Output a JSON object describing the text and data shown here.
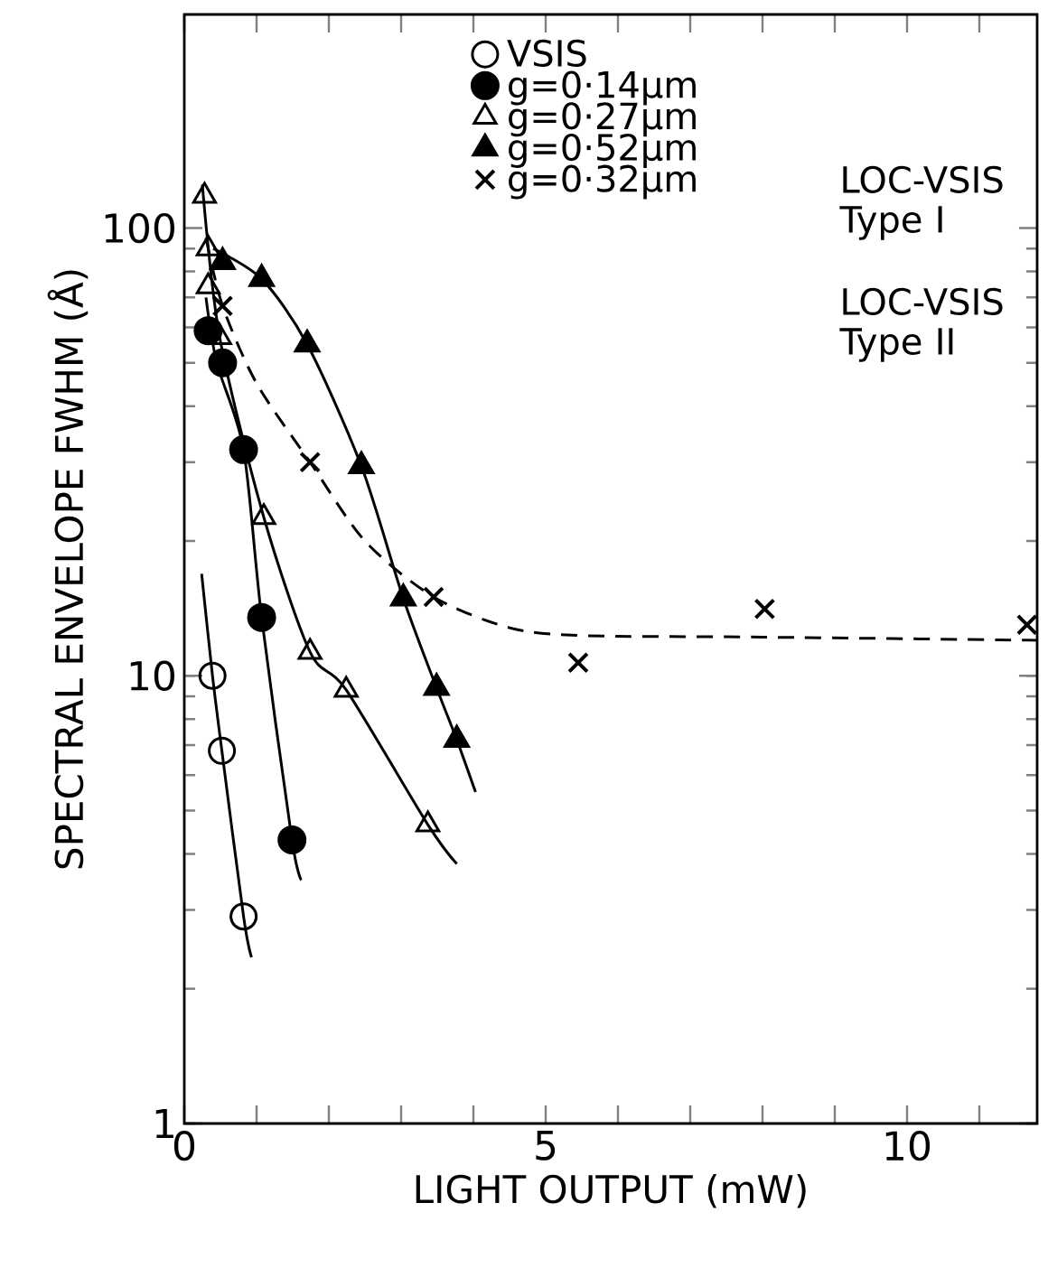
{
  "chart_data": {
    "type": "scatter",
    "xlabel": "LIGHT OUTPUT (mW)",
    "ylabel": "SPECTRAL ENVELOPE FWHM (Å)",
    "log": "y",
    "xlim": [
      0,
      11.8
    ],
    "ylim": [
      1,
      300
    ],
    "xticks": [
      0,
      {
        "value": 1,
        "label": null
      },
      {
        "value": 2,
        "label": null
      },
      {
        "value": 3,
        "label": null
      },
      {
        "value": 4,
        "label": null
      },
      5,
      {
        "value": 6,
        "label": null
      },
      {
        "value": 7,
        "label": null
      },
      {
        "value": 8,
        "label": null
      },
      {
        "value": 9,
        "label": null
      },
      10,
      {
        "value": 11,
        "label": null
      }
    ],
    "yticks": [
      1,
      10,
      100
    ],
    "legend": "top right",
    "grid": false,
    "series": [
      {
        "name": "VSIS",
        "color": "#000000",
        "marker": "circle_open",
        "x": [
          0.39,
          0.52,
          0.82
        ],
        "values": [
          10.0,
          6.8,
          2.9
        ]
      },
      {
        "name": "g=0·14μm",
        "color": "#000000",
        "marker": "circle",
        "x": [
          0.33,
          0.53,
          0.82,
          1.07,
          1.49
        ],
        "values": [
          59,
          50,
          32,
          13.5,
          4.3
        ]
      },
      {
        "name": "g=0·27μm",
        "color": "#000000",
        "marker": "triangle_open",
        "x": [
          0.28,
          0.33,
          0.33,
          0.49,
          1.1,
          1.74,
          2.24,
          3.37
        ],
        "values": [
          118,
          90,
          74,
          57,
          22.6,
          11.3,
          9.3,
          4.65
        ]
      },
      {
        "name": "g=0·52μm",
        "color": "#000000",
        "marker": "triangle",
        "x": [
          0.53,
          1.07,
          1.7,
          2.45,
          3.03,
          3.49,
          3.77
        ],
        "values": [
          84,
          77,
          55,
          29.4,
          14.9,
          9.4,
          7.2
        ]
      },
      {
        "name": "g=0·32μm",
        "color": "#000000",
        "marker": "cross",
        "x": [
          0.53,
          1.74,
          3.45,
          5.45,
          8.03,
          11.66
        ],
        "values": [
          67,
          30,
          15,
          10.7,
          14.1,
          13.0
        ]
      },
      {
        "type": "line",
        "color": "#000000",
        "marker": "none",
        "line_style": "solid",
        "x": [
          0.24,
          0.39,
          0.52,
          0.82,
          0.93
        ],
        "values": [
          16.9,
          10.0,
          6.8,
          2.9,
          2.35
        ]
      },
      {
        "type": "line",
        "color": "#000000",
        "marker": "none",
        "line_style": "solid",
        "x": [
          0.3,
          0.45,
          0.82,
          1.07,
          1.49,
          1.62
        ],
        "values": [
          70,
          50,
          32,
          13.5,
          4.3,
          3.5
        ]
      },
      {
        "type": "line",
        "color": "#000000",
        "marker": "none",
        "line_style": "solid",
        "x": [
          0.25,
          0.49,
          1.1,
          1.74,
          2.24,
          3.37,
          3.77
        ],
        "values": [
          125,
          57,
          22.6,
          11.3,
          9.3,
          4.65,
          3.8
        ]
      },
      {
        "type": "line",
        "color": "#000000",
        "marker": "none",
        "line_style": "solid",
        "x": [
          0.4,
          1.07,
          1.7,
          2.45,
          3.03,
          3.49,
          3.77,
          4.03
        ],
        "values": [
          90,
          77,
          55,
          29.4,
          14.9,
          9.4,
          7.2,
          5.5
        ]
      },
      {
        "type": "line",
        "color": "#000000",
        "marker": "none",
        "line_style": "dashed",
        "x": [
          0.3,
          0.53,
          1.0,
          1.74,
          2.5,
          3.45,
          4.5,
          5.5,
          8.0,
          11.8
        ],
        "values": [
          95,
          67,
          45,
          30,
          20,
          15,
          12.8,
          12.3,
          12.2,
          12.0
        ]
      }
    ],
    "annotations": [
      "LOC-VSIS Type I",
      "LOC-VSIS Type II"
    ]
  }
}
